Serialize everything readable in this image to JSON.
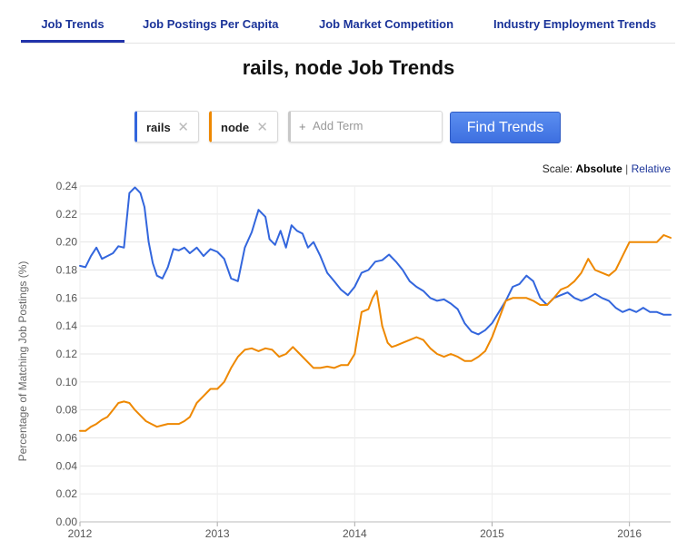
{
  "tabs": [
    {
      "label": "Job Trends",
      "active": true
    },
    {
      "label": "Job Postings Per Capita",
      "active": false
    },
    {
      "label": "Job Market Competition",
      "active": false
    },
    {
      "label": "Industry Employment Trends",
      "active": false
    }
  ],
  "page_title": "rails, node Job Trends",
  "terms": [
    {
      "label": "rails",
      "color": "#3366dd",
      "remove_icon": "close-icon"
    },
    {
      "label": "node",
      "color": "#ee8800",
      "remove_icon": "close-icon"
    }
  ],
  "add_term": {
    "prefix": "+",
    "placeholder": "Add Term"
  },
  "find_button": "Find Trends",
  "scale": {
    "label": "Scale:",
    "absolute": "Absolute",
    "separator": "|",
    "relative": "Relative"
  },
  "chart_data": {
    "type": "line",
    "ylabel": "Percentage of Matching Job Postings (%)",
    "xlabel": "",
    "ylim": [
      0,
      0.24
    ],
    "yticks": [
      "0.00",
      "0.02",
      "0.04",
      "0.06",
      "0.08",
      "0.10",
      "0.12",
      "0.14",
      "0.16",
      "0.18",
      "0.20",
      "0.22",
      "0.24"
    ],
    "xlim": [
      2012,
      2016.3
    ],
    "xticks": [
      "2012",
      "2013",
      "2014",
      "2015",
      "2016"
    ],
    "grid": true,
    "series": [
      {
        "name": "rails",
        "color": "#3366dd",
        "x": [
          2012.0,
          2012.04,
          2012.08,
          2012.12,
          2012.16,
          2012.2,
          2012.24,
          2012.28,
          2012.32,
          2012.36,
          2012.4,
          2012.42,
          2012.44,
          2012.47,
          2012.5,
          2012.53,
          2012.56,
          2012.6,
          2012.64,
          2012.68,
          2012.72,
          2012.76,
          2012.8,
          2012.85,
          2012.9,
          2012.95,
          2013.0,
          2013.05,
          2013.1,
          2013.15,
          2013.2,
          2013.25,
          2013.3,
          2013.35,
          2013.38,
          2013.42,
          2013.46,
          2013.5,
          2013.54,
          2013.58,
          2013.62,
          2013.66,
          2013.7,
          2013.75,
          2013.8,
          2013.85,
          2013.9,
          2013.95,
          2014.0,
          2014.05,
          2014.1,
          2014.15,
          2014.2,
          2014.25,
          2014.3,
          2014.35,
          2014.4,
          2014.45,
          2014.5,
          2014.55,
          2014.6,
          2014.65,
          2014.7,
          2014.75,
          2014.8,
          2014.85,
          2014.9,
          2014.95,
          2015.0,
          2015.05,
          2015.1,
          2015.15,
          2015.2,
          2015.25,
          2015.3,
          2015.35,
          2015.4,
          2015.45,
          2015.5,
          2015.55,
          2015.6,
          2015.65,
          2015.7,
          2015.75,
          2015.8,
          2015.85,
          2015.9,
          2015.95,
          2016.0,
          2016.05,
          2016.1,
          2016.15,
          2016.2,
          2016.25,
          2016.3
        ],
        "y": [
          0.183,
          0.182,
          0.19,
          0.196,
          0.188,
          0.19,
          0.192,
          0.197,
          0.196,
          0.235,
          0.239,
          0.237,
          0.235,
          0.225,
          0.2,
          0.185,
          0.176,
          0.174,
          0.182,
          0.195,
          0.194,
          0.196,
          0.192,
          0.196,
          0.19,
          0.195,
          0.193,
          0.188,
          0.174,
          0.172,
          0.196,
          0.207,
          0.223,
          0.218,
          0.202,
          0.198,
          0.208,
          0.196,
          0.212,
          0.208,
          0.206,
          0.196,
          0.2,
          0.19,
          0.178,
          0.172,
          0.166,
          0.162,
          0.168,
          0.178,
          0.18,
          0.186,
          0.187,
          0.191,
          0.186,
          0.18,
          0.172,
          0.168,
          0.165,
          0.16,
          0.158,
          0.159,
          0.156,
          0.152,
          0.142,
          0.136,
          0.134,
          0.137,
          0.142,
          0.15,
          0.158,
          0.168,
          0.17,
          0.176,
          0.172,
          0.16,
          0.155,
          0.16,
          0.162,
          0.164,
          0.16,
          0.158,
          0.16,
          0.163,
          0.16,
          0.158,
          0.153,
          0.15,
          0.152,
          0.15,
          0.153,
          0.15,
          0.15,
          0.148,
          0.148
        ]
      },
      {
        "name": "node",
        "color": "#ee8800",
        "x": [
          2012.0,
          2012.04,
          2012.08,
          2012.12,
          2012.16,
          2012.2,
          2012.24,
          2012.28,
          2012.32,
          2012.36,
          2012.4,
          2012.44,
          2012.48,
          2012.52,
          2012.56,
          2012.6,
          2012.64,
          2012.68,
          2012.72,
          2012.76,
          2012.8,
          2012.85,
          2012.9,
          2012.95,
          2013.0,
          2013.05,
          2013.1,
          2013.15,
          2013.2,
          2013.25,
          2013.3,
          2013.35,
          2013.4,
          2013.45,
          2013.5,
          2013.55,
          2013.6,
          2013.65,
          2013.7,
          2013.75,
          2013.8,
          2013.85,
          2013.9,
          2013.95,
          2014.0,
          2014.05,
          2014.1,
          2014.13,
          2014.16,
          2014.2,
          2014.24,
          2014.27,
          2014.3,
          2014.35,
          2014.4,
          2014.45,
          2014.5,
          2014.55,
          2014.6,
          2014.65,
          2014.7,
          2014.75,
          2014.8,
          2014.85,
          2014.9,
          2014.95,
          2015.0,
          2015.05,
          2015.1,
          2015.15,
          2015.2,
          2015.25,
          2015.3,
          2015.35,
          2015.4,
          2015.45,
          2015.5,
          2015.55,
          2015.6,
          2015.65,
          2015.7,
          2015.75,
          2015.8,
          2015.85,
          2015.9,
          2015.95,
          2016.0,
          2016.05,
          2016.1,
          2016.15,
          2016.2,
          2016.25,
          2016.3
        ],
        "y": [
          0.065,
          0.065,
          0.068,
          0.07,
          0.073,
          0.075,
          0.08,
          0.085,
          0.086,
          0.085,
          0.08,
          0.076,
          0.072,
          0.07,
          0.068,
          0.069,
          0.07,
          0.07,
          0.07,
          0.072,
          0.075,
          0.085,
          0.09,
          0.095,
          0.095,
          0.1,
          0.11,
          0.118,
          0.123,
          0.124,
          0.122,
          0.124,
          0.123,
          0.118,
          0.12,
          0.125,
          0.12,
          0.115,
          0.11,
          0.11,
          0.111,
          0.11,
          0.112,
          0.112,
          0.12,
          0.15,
          0.152,
          0.16,
          0.165,
          0.14,
          0.128,
          0.125,
          0.126,
          0.128,
          0.13,
          0.132,
          0.13,
          0.124,
          0.12,
          0.118,
          0.12,
          0.118,
          0.115,
          0.115,
          0.118,
          0.122,
          0.132,
          0.145,
          0.158,
          0.16,
          0.16,
          0.16,
          0.158,
          0.155,
          0.155,
          0.16,
          0.166,
          0.168,
          0.172,
          0.178,
          0.188,
          0.18,
          0.178,
          0.176,
          0.18,
          0.19,
          0.2,
          0.2,
          0.2,
          0.2,
          0.2,
          0.205,
          0.203
        ]
      }
    ]
  }
}
